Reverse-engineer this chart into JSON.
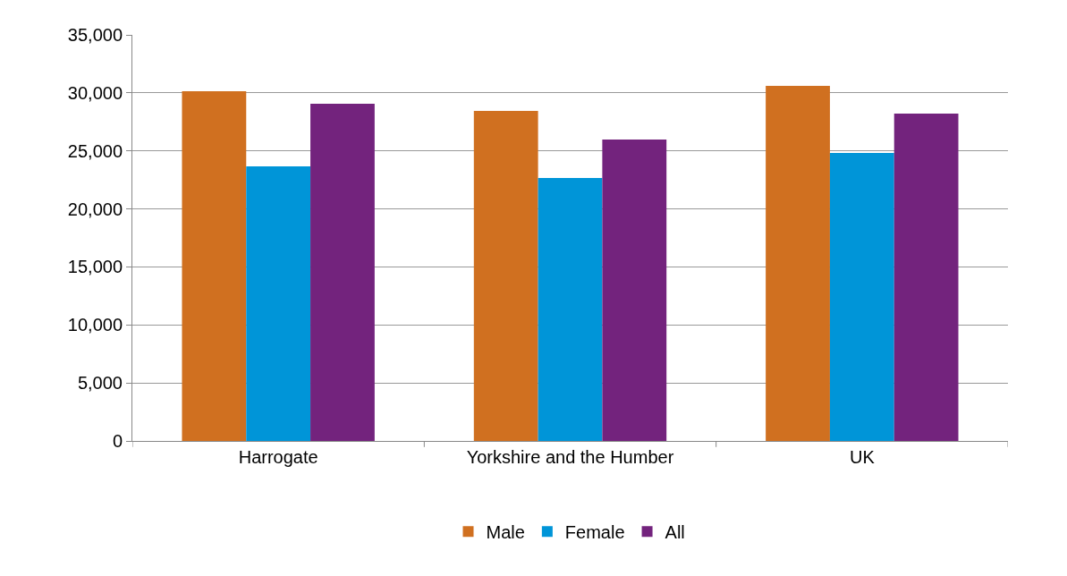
{
  "chart_data": {
    "type": "bar",
    "categories": [
      "Harrogate",
      "Yorkshire and the Humber",
      "UK"
    ],
    "series": [
      {
        "name": "Male",
        "color": "#d07020",
        "values": [
          30150,
          28450,
          30600
        ]
      },
      {
        "name": "Female",
        "color": "#0095d8",
        "values": [
          23670,
          22670,
          24830
        ]
      },
      {
        "name": "All",
        "color": "#73237d",
        "values": [
          29070,
          25980,
          28220
        ]
      }
    ],
    "ylim": [
      0,
      35000
    ],
    "yticks": [
      {
        "value": 0,
        "label": "0"
      },
      {
        "value": 5000,
        "label": "5,000"
      },
      {
        "value": 10000,
        "label": "10,000"
      },
      {
        "value": 15000,
        "label": "15,000"
      },
      {
        "value": 20000,
        "label": "20,000"
      },
      {
        "value": 25000,
        "label": "25,000"
      },
      {
        "value": 30000,
        "label": "30,000"
      },
      {
        "value": 35000,
        "label": "35,000"
      }
    ],
    "grid": "y",
    "legend": "bottom"
  }
}
